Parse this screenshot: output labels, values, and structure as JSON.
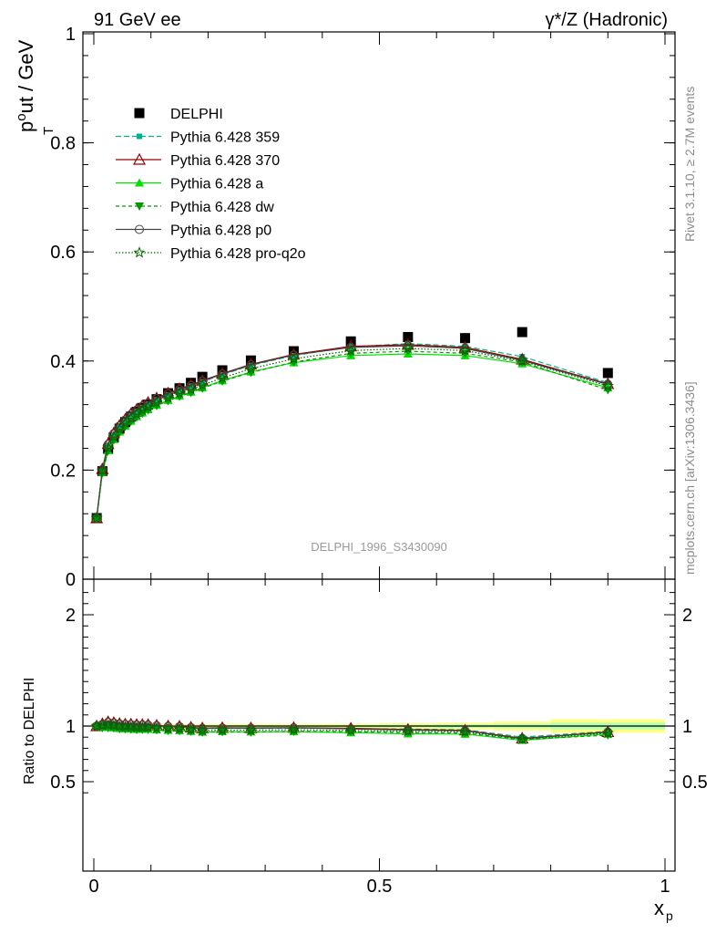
{
  "header": {
    "left_title": "91 GeV ee",
    "right_title": "γ*/Z (Hadronic)"
  },
  "side_labels": {
    "rivet": "Rivet 3.1.10, ≥ 2.7M events",
    "mcplots": "mcplots.cern.ch [arXiv:1306.3436]"
  },
  "colors": {
    "DELPHI": "#000000",
    "p359": "#00b386",
    "p370": "#990000",
    "pa": "#00e000",
    "pdw": "#009900",
    "pp0": "#444444",
    "pq2o": "#006600",
    "band_yellow": "#ffff80",
    "band_green": "#b3ffb3"
  },
  "chart_data": [
    {
      "type": "line",
      "panel": "main",
      "title": "",
      "xlabel": "x_p",
      "ylabel": "p_T^out / GeV",
      "watermark": "DELPHI_1996_S3430090",
      "xlim": [
        0,
        1
      ],
      "ylim": [
        0,
        1
      ],
      "yticks": [
        0,
        0.2,
        0.4,
        0.6,
        0.8,
        1
      ],
      "ytick_labels": [
        "0",
        "0.2",
        "0.4",
        "0.6",
        "0.8",
        "1"
      ],
      "legend_position": "top-left",
      "x": [
        0.005,
        0.015,
        0.025,
        0.035,
        0.045,
        0.055,
        0.065,
        0.075,
        0.085,
        0.095,
        0.11,
        0.13,
        0.15,
        0.17,
        0.19,
        0.225,
        0.275,
        0.35,
        0.45,
        0.55,
        0.65,
        0.75,
        0.9
      ],
      "series": [
        {
          "name": "DELPHI",
          "key": "DELPHI",
          "marker": "square",
          "values": [
            0.112,
            0.198,
            0.239,
            0.26,
            0.276,
            0.288,
            0.298,
            0.307,
            0.314,
            0.32,
            0.33,
            0.341,
            0.35,
            0.36,
            0.371,
            0.383,
            0.401,
            0.418,
            0.436,
            0.444,
            0.442,
            0.453,
            0.378
          ]
        },
        {
          "name": "Pythia 6.428 359",
          "key": "p359",
          "marker": "square-small",
          "dash": "6,3",
          "values": [
            0.112,
            0.2,
            0.245,
            0.265,
            0.279,
            0.29,
            0.3,
            0.308,
            0.315,
            0.321,
            0.329,
            0.338,
            0.347,
            0.354,
            0.362,
            0.375,
            0.392,
            0.41,
            0.426,
            0.432,
            0.427,
            0.408,
            0.36
          ]
        },
        {
          "name": "Pythia 6.428 370",
          "key": "p370",
          "marker": "triangle-open",
          "values": [
            0.112,
            0.202,
            0.248,
            0.268,
            0.282,
            0.293,
            0.303,
            0.311,
            0.318,
            0.324,
            0.332,
            0.341,
            0.349,
            0.356,
            0.364,
            0.377,
            0.394,
            0.412,
            0.427,
            0.43,
            0.425,
            0.403,
            0.358
          ]
        },
        {
          "name": "Pythia 6.428 a",
          "key": "pa",
          "marker": "triangle",
          "values": [
            0.112,
            0.196,
            0.236,
            0.256,
            0.27,
            0.281,
            0.29,
            0.298,
            0.305,
            0.311,
            0.319,
            0.328,
            0.336,
            0.343,
            0.351,
            0.364,
            0.38,
            0.397,
            0.41,
            0.413,
            0.41,
            0.395,
            0.351
          ]
        },
        {
          "name": "Pythia 6.428 dw",
          "key": "pdw",
          "marker": "triangle-down",
          "dash": "4,3",
          "values": [
            0.111,
            0.195,
            0.235,
            0.255,
            0.269,
            0.28,
            0.289,
            0.297,
            0.304,
            0.31,
            0.318,
            0.327,
            0.335,
            0.342,
            0.35,
            0.363,
            0.379,
            0.398,
            0.414,
            0.418,
            0.414,
            0.398,
            0.347
          ]
        },
        {
          "name": "Pythia 6.428 p0",
          "key": "pp0",
          "marker": "circle-open",
          "values": [
            0.112,
            0.201,
            0.247,
            0.267,
            0.281,
            0.292,
            0.302,
            0.31,
            0.317,
            0.323,
            0.331,
            0.34,
            0.348,
            0.355,
            0.363,
            0.376,
            0.393,
            0.411,
            0.425,
            0.428,
            0.423,
            0.401,
            0.357
          ]
        },
        {
          "name": "Pythia 6.428 pro-q2o",
          "key": "pq2o",
          "marker": "star",
          "dash": "1.5,2",
          "values": [
            0.112,
            0.199,
            0.241,
            0.261,
            0.275,
            0.286,
            0.295,
            0.303,
            0.31,
            0.316,
            0.324,
            0.333,
            0.341,
            0.348,
            0.356,
            0.369,
            0.386,
            0.404,
            0.419,
            0.423,
            0.419,
            0.4,
            0.354
          ]
        }
      ]
    },
    {
      "type": "line",
      "panel": "ratio",
      "title": "",
      "xlabel": "x_p",
      "ylabel": "Ratio to DELPHI",
      "xlim": [
        0,
        1
      ],
      "ylim": [
        0.35,
        2.25
      ],
      "xticks": [
        0,
        0.5,
        1
      ],
      "xtick_labels": [
        "0",
        "0.5",
        "1"
      ],
      "yticks": [
        0.5,
        1,
        2
      ],
      "ytick_labels": [
        "0.5",
        "1",
        "2"
      ],
      "bands": {
        "x_edges": [
          0,
          0.01,
          0.02,
          0.03,
          0.04,
          0.05,
          0.06,
          0.07,
          0.08,
          0.09,
          0.1,
          0.12,
          0.14,
          0.16,
          0.18,
          0.2,
          0.25,
          0.3,
          0.4,
          0.5,
          0.6,
          0.7,
          0.8,
          1.0
        ],
        "yellow_halfwidth": [
          0.02,
          0.02,
          0.02,
          0.02,
          0.02,
          0.02,
          0.02,
          0.02,
          0.02,
          0.02,
          0.02,
          0.02,
          0.02,
          0.02,
          0.02,
          0.02,
          0.02,
          0.02,
          0.02,
          0.025,
          0.03,
          0.04,
          0.06
        ],
        "green_halfwidth": [
          0.01,
          0.01,
          0.01,
          0.01,
          0.01,
          0.01,
          0.01,
          0.01,
          0.01,
          0.01,
          0.01,
          0.01,
          0.01,
          0.01,
          0.01,
          0.01,
          0.01,
          0.01,
          0.01,
          0.012,
          0.015,
          0.02,
          0.03
        ]
      }
    }
  ]
}
